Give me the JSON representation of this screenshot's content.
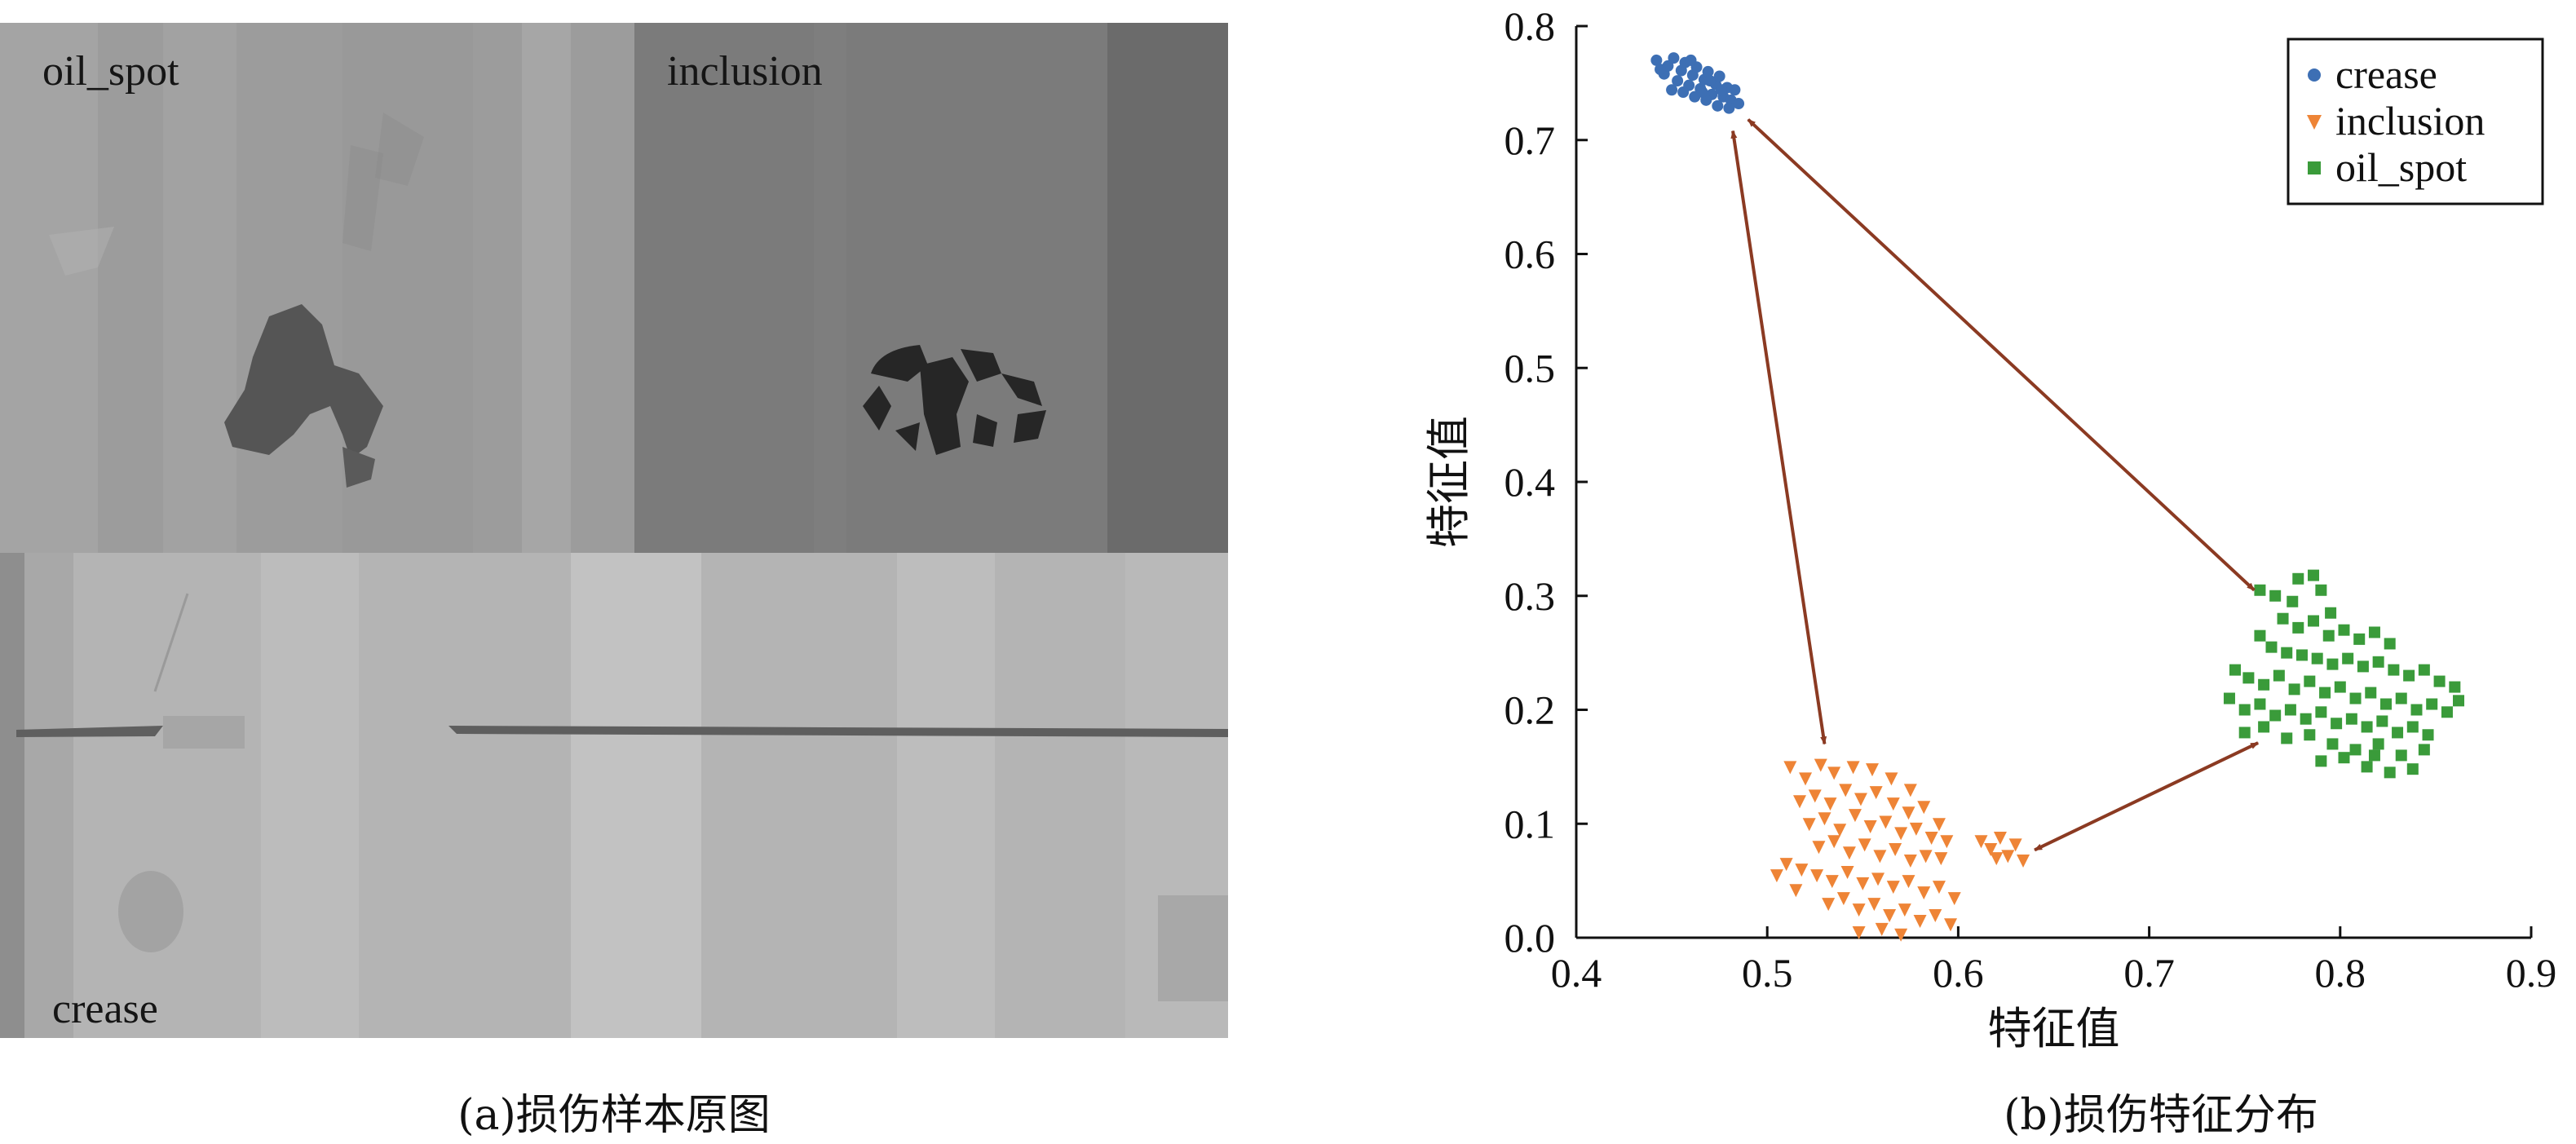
{
  "panel_a": {
    "caption": "(a)损伤样本原图",
    "tiles": [
      {
        "label": "oil_spot"
      },
      {
        "label": "inclusion"
      },
      {
        "label": "crease"
      }
    ]
  },
  "panel_b": {
    "caption": "(b)损伤特征分布"
  },
  "chart_data": {
    "type": "scatter",
    "title": "",
    "xlabel": "特征值",
    "ylabel": "特征值",
    "xlim": [
      0.4,
      0.9
    ],
    "ylim": [
      0.0,
      0.8
    ],
    "xticks": [
      "0.4",
      "0.5",
      "0.6",
      "0.7",
      "0.8",
      "0.9"
    ],
    "yticks": [
      "0.0",
      "0.1",
      "0.2",
      "0.3",
      "0.4",
      "0.5",
      "0.6",
      "0.7",
      "0.8"
    ],
    "grid": false,
    "legend_position": "top-right",
    "series": [
      {
        "name": "crease",
        "marker": "circle",
        "color": "#3d6fb4",
        "points": [
          [
            0.442,
            0.77
          ],
          [
            0.446,
            0.758
          ],
          [
            0.448,
            0.765
          ],
          [
            0.451,
            0.772
          ],
          [
            0.453,
            0.752
          ],
          [
            0.455,
            0.761
          ],
          [
            0.457,
            0.768
          ],
          [
            0.459,
            0.748
          ],
          [
            0.461,
            0.757
          ],
          [
            0.463,
            0.764
          ],
          [
            0.465,
            0.745
          ],
          [
            0.467,
            0.753
          ],
          [
            0.469,
            0.76
          ],
          [
            0.471,
            0.74
          ],
          [
            0.473,
            0.749
          ],
          [
            0.475,
            0.756
          ],
          [
            0.477,
            0.738
          ],
          [
            0.479,
            0.746
          ],
          [
            0.481,
            0.735
          ],
          [
            0.483,
            0.744
          ],
          [
            0.485,
            0.732
          ],
          [
            0.45,
            0.744
          ],
          [
            0.456,
            0.742
          ],
          [
            0.462,
            0.738
          ],
          [
            0.468,
            0.735
          ],
          [
            0.474,
            0.73
          ],
          [
            0.444,
            0.762
          ],
          [
            0.47,
            0.752
          ],
          [
            0.476,
            0.744
          ],
          [
            0.46,
            0.77
          ],
          [
            0.466,
            0.742
          ],
          [
            0.48,
            0.728
          ]
        ]
      },
      {
        "name": "inclusion",
        "marker": "triangle-down",
        "color": "#ee8436",
        "points": [
          [
            0.512,
            0.15
          ],
          [
            0.52,
            0.14
          ],
          [
            0.528,
            0.152
          ],
          [
            0.535,
            0.145
          ],
          [
            0.545,
            0.15
          ],
          [
            0.555,
            0.148
          ],
          [
            0.565,
            0.14
          ],
          [
            0.575,
            0.13
          ],
          [
            0.517,
            0.12
          ],
          [
            0.525,
            0.125
          ],
          [
            0.533,
            0.118
          ],
          [
            0.541,
            0.13
          ],
          [
            0.549,
            0.122
          ],
          [
            0.557,
            0.128
          ],
          [
            0.566,
            0.118
          ],
          [
            0.574,
            0.11
          ],
          [
            0.582,
            0.115
          ],
          [
            0.59,
            0.1
          ],
          [
            0.522,
            0.1
          ],
          [
            0.53,
            0.105
          ],
          [
            0.538,
            0.095
          ],
          [
            0.546,
            0.108
          ],
          [
            0.554,
            0.098
          ],
          [
            0.562,
            0.102
          ],
          [
            0.57,
            0.092
          ],
          [
            0.578,
            0.096
          ],
          [
            0.586,
            0.088
          ],
          [
            0.594,
            0.085
          ],
          [
            0.527,
            0.08
          ],
          [
            0.535,
            0.085
          ],
          [
            0.543,
            0.075
          ],
          [
            0.551,
            0.082
          ],
          [
            0.559,
            0.072
          ],
          [
            0.567,
            0.078
          ],
          [
            0.575,
            0.068
          ],
          [
            0.583,
            0.072
          ],
          [
            0.591,
            0.07
          ],
          [
            0.51,
            0.065
          ],
          [
            0.518,
            0.06
          ],
          [
            0.526,
            0.055
          ],
          [
            0.534,
            0.05
          ],
          [
            0.542,
            0.058
          ],
          [
            0.55,
            0.048
          ],
          [
            0.558,
            0.052
          ],
          [
            0.566,
            0.045
          ],
          [
            0.574,
            0.05
          ],
          [
            0.582,
            0.04
          ],
          [
            0.59,
            0.045
          ],
          [
            0.598,
            0.035
          ],
          [
            0.532,
            0.03
          ],
          [
            0.54,
            0.035
          ],
          [
            0.548,
            0.025
          ],
          [
            0.556,
            0.03
          ],
          [
            0.564,
            0.02
          ],
          [
            0.572,
            0.025
          ],
          [
            0.58,
            0.015
          ],
          [
            0.588,
            0.02
          ],
          [
            0.596,
            0.012
          ],
          [
            0.548,
            0.005
          ],
          [
            0.56,
            0.008
          ],
          [
            0.57,
            0.003
          ],
          [
            0.515,
            0.042
          ],
          [
            0.505,
            0.055
          ],
          [
            0.612,
            0.085
          ],
          [
            0.617,
            0.078
          ],
          [
            0.622,
            0.088
          ],
          [
            0.626,
            0.072
          ],
          [
            0.63,
            0.082
          ],
          [
            0.634,
            0.068
          ],
          [
            0.62,
            0.07
          ]
        ]
      },
      {
        "name": "oil_spot",
        "marker": "square",
        "color": "#3a9b3a",
        "points": [
          [
            0.758,
            0.305
          ],
          [
            0.766,
            0.3
          ],
          [
            0.778,
            0.315
          ],
          [
            0.786,
            0.318
          ],
          [
            0.79,
            0.305
          ],
          [
            0.77,
            0.28
          ],
          [
            0.778,
            0.272
          ],
          [
            0.786,
            0.278
          ],
          [
            0.794,
            0.265
          ],
          [
            0.802,
            0.27
          ],
          [
            0.81,
            0.262
          ],
          [
            0.818,
            0.268
          ],
          [
            0.826,
            0.258
          ],
          [
            0.758,
            0.265
          ],
          [
            0.764,
            0.255
          ],
          [
            0.772,
            0.25
          ],
          [
            0.78,
            0.248
          ],
          [
            0.788,
            0.245
          ],
          [
            0.796,
            0.24
          ],
          [
            0.804,
            0.245
          ],
          [
            0.812,
            0.238
          ],
          [
            0.82,
            0.242
          ],
          [
            0.828,
            0.235
          ],
          [
            0.836,
            0.23
          ],
          [
            0.844,
            0.235
          ],
          [
            0.852,
            0.225
          ],
          [
            0.86,
            0.22
          ],
          [
            0.745,
            0.235
          ],
          [
            0.752,
            0.228
          ],
          [
            0.76,
            0.222
          ],
          [
            0.768,
            0.23
          ],
          [
            0.776,
            0.218
          ],
          [
            0.784,
            0.225
          ],
          [
            0.792,
            0.215
          ],
          [
            0.8,
            0.22
          ],
          [
            0.808,
            0.21
          ],
          [
            0.816,
            0.215
          ],
          [
            0.824,
            0.205
          ],
          [
            0.832,
            0.21
          ],
          [
            0.84,
            0.2
          ],
          [
            0.848,
            0.205
          ],
          [
            0.856,
            0.198
          ],
          [
            0.862,
            0.208
          ],
          [
            0.742,
            0.21
          ],
          [
            0.75,
            0.2
          ],
          [
            0.758,
            0.205
          ],
          [
            0.766,
            0.195
          ],
          [
            0.774,
            0.2
          ],
          [
            0.782,
            0.192
          ],
          [
            0.79,
            0.198
          ],
          [
            0.798,
            0.188
          ],
          [
            0.806,
            0.192
          ],
          [
            0.814,
            0.185
          ],
          [
            0.822,
            0.19
          ],
          [
            0.83,
            0.18
          ],
          [
            0.838,
            0.185
          ],
          [
            0.846,
            0.178
          ],
          [
            0.75,
            0.18
          ],
          [
            0.76,
            0.185
          ],
          [
            0.772,
            0.175
          ],
          [
            0.784,
            0.178
          ],
          [
            0.796,
            0.17
          ],
          [
            0.808,
            0.165
          ],
          [
            0.82,
            0.17
          ],
          [
            0.832,
            0.16
          ],
          [
            0.844,
            0.165
          ],
          [
            0.79,
            0.155
          ],
          [
            0.802,
            0.158
          ],
          [
            0.814,
            0.15
          ],
          [
            0.826,
            0.145
          ],
          [
            0.838,
            0.148
          ],
          [
            0.818,
            0.16
          ],
          [
            0.795,
            0.285
          ],
          [
            0.775,
            0.295
          ]
        ]
      }
    ],
    "annotations": [
      {
        "type": "double-arrow",
        "from": [
          0.482,
          0.708
        ],
        "to": [
          0.53,
          0.17
        ],
        "color": "#8b3a22"
      },
      {
        "type": "double-arrow",
        "from": [
          0.49,
          0.718
        ],
        "to": [
          0.755,
          0.305
        ],
        "color": "#8b3a22"
      },
      {
        "type": "double-arrow",
        "from": [
          0.64,
          0.077
        ],
        "to": [
          0.757,
          0.171
        ],
        "color": "#8b3a22"
      }
    ]
  }
}
